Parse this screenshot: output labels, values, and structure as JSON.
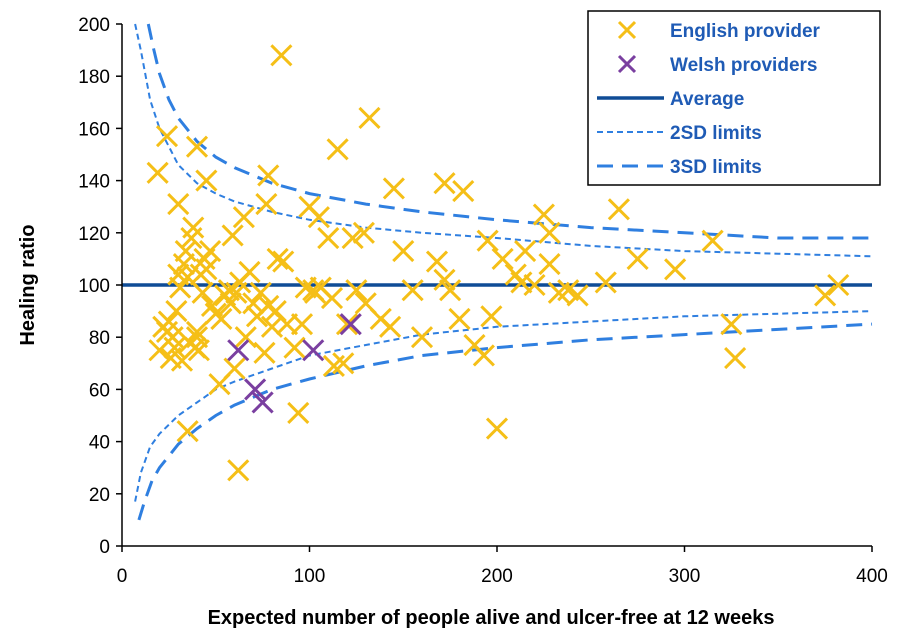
{
  "chart_data": {
    "type": "scatter",
    "xlabel": "Expected number of people alive and ulcer-free at 12 weeks",
    "ylabel": "Healing ratio",
    "xlim": [
      0,
      400
    ],
    "ylim": [
      0,
      200
    ],
    "x_ticks": [
      0,
      100,
      200,
      300,
      400
    ],
    "y_ticks": [
      0,
      20,
      40,
      60,
      80,
      100,
      120,
      140,
      160,
      180,
      200
    ],
    "x_tick_labels": [
      "0",
      "100",
      "200",
      "300",
      "400"
    ],
    "y_tick_labels": [
      "0",
      "20",
      "40",
      "60",
      "80",
      "100",
      "120",
      "140",
      "160",
      "180",
      "200"
    ],
    "grid": false,
    "legend_position": "top-right",
    "colors": {
      "english": "#f5bf17",
      "welsh": "#7a3fa0",
      "average": "#0f4c96",
      "limits": "#2f7fe0",
      "legend_text": "#1f5bb5"
    },
    "legend": [
      {
        "label": "English provider",
        "marker": "x",
        "color": "#f5bf17"
      },
      {
        "label": "Welsh providers",
        "marker": "x",
        "color": "#7a3fa0"
      },
      {
        "label": "Average",
        "line": "solid",
        "color": "#0f4c96"
      },
      {
        "label": "2SD limits",
        "line": "dotted",
        "color": "#2f7fe0"
      },
      {
        "label": "3SD limits",
        "line": "dashed",
        "color": "#2f7fe0"
      }
    ],
    "average": 100,
    "limits": {
      "sd2": {
        "upper": [
          [
            7,
            200
          ],
          [
            10,
            190
          ],
          [
            15,
            171
          ],
          [
            20,
            160
          ],
          [
            30,
            146
          ],
          [
            40,
            139
          ],
          [
            50,
            135
          ],
          [
            60,
            132
          ],
          [
            80,
            128
          ],
          [
            100,
            125
          ],
          [
            130,
            122
          ],
          [
            160,
            120
          ],
          [
            200,
            118
          ],
          [
            250,
            115
          ],
          [
            300,
            113
          ],
          [
            350,
            112
          ],
          [
            400,
            111
          ]
        ],
        "lower": [
          [
            7,
            17
          ],
          [
            10,
            28
          ],
          [
            15,
            38
          ],
          [
            20,
            43
          ],
          [
            30,
            50
          ],
          [
            40,
            55
          ],
          [
            50,
            60
          ],
          [
            60,
            63
          ],
          [
            80,
            68
          ],
          [
            100,
            73
          ],
          [
            130,
            77
          ],
          [
            160,
            81
          ],
          [
            200,
            84
          ],
          [
            250,
            86
          ],
          [
            300,
            88
          ],
          [
            350,
            89
          ],
          [
            400,
            90
          ]
        ]
      },
      "sd3": {
        "upper": [
          [
            14,
            200
          ],
          [
            17,
            190
          ],
          [
            20,
            181
          ],
          [
            25,
            171
          ],
          [
            30,
            164
          ],
          [
            40,
            155
          ],
          [
            50,
            149
          ],
          [
            60,
            145
          ],
          [
            80,
            139
          ],
          [
            100,
            135
          ],
          [
            130,
            131
          ],
          [
            160,
            128
          ],
          [
            200,
            125
          ],
          [
            250,
            122
          ],
          [
            300,
            120
          ],
          [
            350,
            118
          ],
          [
            400,
            118
          ]
        ],
        "lower": [
          [
            9,
            10
          ],
          [
            12,
            17
          ],
          [
            16,
            25
          ],
          [
            20,
            30
          ],
          [
            30,
            39
          ],
          [
            40,
            45
          ],
          [
            50,
            50
          ],
          [
            60,
            54
          ],
          [
            80,
            60
          ],
          [
            100,
            64
          ],
          [
            130,
            69
          ],
          [
            160,
            73
          ],
          [
            200,
            76
          ],
          [
            250,
            79
          ],
          [
            300,
            81
          ],
          [
            350,
            83
          ],
          [
            400,
            85
          ]
        ]
      }
    },
    "series": [
      {
        "name": "English provider",
        "marker": "x",
        "points": [
          [
            19,
            143
          ],
          [
            24,
            157
          ],
          [
            30,
            131
          ],
          [
            40,
            153
          ],
          [
            45,
            140
          ],
          [
            77,
            131
          ],
          [
            85,
            188
          ],
          [
            78,
            142
          ],
          [
            100,
            130
          ],
          [
            105,
            126
          ],
          [
            115,
            152
          ],
          [
            123,
            118
          ],
          [
            129,
            120
          ],
          [
            132,
            164
          ],
          [
            145,
            137
          ],
          [
            172,
            139
          ],
          [
            182,
            136
          ],
          [
            195,
            117
          ],
          [
            215,
            113
          ],
          [
            225,
            127
          ],
          [
            228,
            120
          ],
          [
            265,
            129
          ],
          [
            275,
            110
          ],
          [
            295,
            106
          ],
          [
            315,
            117
          ],
          [
            325,
            85
          ],
          [
            327,
            72
          ],
          [
            375,
            96
          ],
          [
            382,
            100
          ],
          [
            20,
            75
          ],
          [
            22,
            84
          ],
          [
            24,
            82
          ],
          [
            25,
            86
          ],
          [
            26,
            72
          ],
          [
            27,
            80
          ],
          [
            28,
            76
          ],
          [
            29,
            90
          ],
          [
            30,
            104
          ],
          [
            31,
            99
          ],
          [
            32,
            71
          ],
          [
            33,
            108
          ],
          [
            34,
            113
          ],
          [
            35,
            103
          ],
          [
            36,
            78
          ],
          [
            37,
            118
          ],
          [
            38,
            122
          ],
          [
            39,
            76
          ],
          [
            40,
            80
          ],
          [
            41,
            75
          ],
          [
            42,
            104
          ],
          [
            43,
            97
          ],
          [
            44,
            110
          ],
          [
            45,
            106
          ],
          [
            47,
            113
          ],
          [
            48,
            92
          ],
          [
            50,
            89
          ],
          [
            52,
            62
          ],
          [
            53,
            87
          ],
          [
            55,
            96
          ],
          [
            57,
            98
          ],
          [
            58,
            93
          ],
          [
            59,
            119
          ],
          [
            60,
            68
          ],
          [
            61,
            97
          ],
          [
            62,
            29
          ],
          [
            63,
            101
          ],
          [
            65,
            126
          ],
          [
            66,
            80
          ],
          [
            68,
            105
          ],
          [
            70,
            93
          ],
          [
            72,
            88
          ],
          [
            74,
            97
          ],
          [
            76,
            74
          ],
          [
            78,
            92
          ],
          [
            80,
            84
          ],
          [
            82,
            90
          ],
          [
            83,
            110
          ],
          [
            86,
            109
          ],
          [
            88,
            85
          ],
          [
            92,
            76
          ],
          [
            94,
            51
          ],
          [
            96,
            85
          ],
          [
            98,
            99
          ],
          [
            102,
            98
          ],
          [
            103,
            97
          ],
          [
            106,
            99
          ],
          [
            110,
            118
          ],
          [
            112,
            95
          ],
          [
            113,
            69
          ],
          [
            118,
            70
          ],
          [
            120,
            85
          ],
          [
            125,
            98
          ],
          [
            130,
            93
          ],
          [
            138,
            87
          ],
          [
            143,
            84
          ],
          [
            150,
            113
          ],
          [
            155,
            98
          ],
          [
            160,
            80
          ],
          [
            168,
            109
          ],
          [
            172,
            102
          ],
          [
            175,
            98
          ],
          [
            180,
            87
          ],
          [
            188,
            77
          ],
          [
            193,
            73
          ],
          [
            197,
            88
          ],
          [
            200,
            45
          ],
          [
            203,
            110
          ],
          [
            210,
            104
          ],
          [
            213,
            101
          ],
          [
            220,
            100
          ],
          [
            228,
            108
          ],
          [
            233,
            97
          ],
          [
            238,
            98
          ],
          [
            243,
            96
          ],
          [
            258,
            101
          ],
          [
            35,
            44
          ],
          [
            40,
            82
          ]
        ]
      },
      {
        "name": "Welsh providers",
        "marker": "x",
        "points": [
          [
            62,
            75
          ],
          [
            71,
            60
          ],
          [
            75,
            55
          ],
          [
            102,
            75
          ],
          [
            122,
            85
          ]
        ]
      }
    ]
  }
}
